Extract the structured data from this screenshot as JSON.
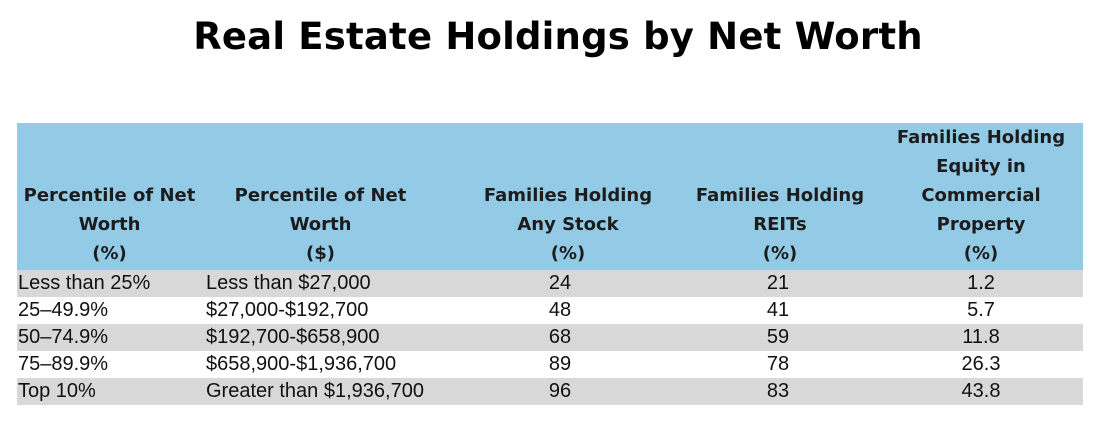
{
  "title": "Real Estate Holdings by Net Worth",
  "colors": {
    "header_background": "#93cbe7",
    "shaded_row": "#d8d8d8"
  },
  "table": {
    "columns": [
      {
        "lines": [
          "Percentile of Net",
          "Worth",
          "(%)"
        ]
      },
      {
        "lines": [
          "Percentile of Net Worth",
          "($)"
        ]
      },
      {
        "lines": [
          "Families Holding",
          "Any Stock",
          "(%)"
        ]
      },
      {
        "lines": [
          "Families Holding",
          "REITs",
          "(%)"
        ]
      },
      {
        "lines": [
          "Families Holding",
          "Equity in",
          "Commercial",
          "Property",
          "(%)"
        ]
      }
    ],
    "rows": [
      {
        "percentile": "Less than 25%",
        "net_worth": "Less than $27,000",
        "any_stock": "24",
        "reits": "21",
        "commercial": "1.2"
      },
      {
        "percentile": "25–49.9%",
        "net_worth": "$27,000-$192,700",
        "any_stock": "48",
        "reits": "41",
        "commercial": "5.7"
      },
      {
        "percentile": "50–74.9%",
        "net_worth": "$192,700-$658,900",
        "any_stock": "68",
        "reits": "59",
        "commercial": "11.8"
      },
      {
        "percentile": "75–89.9%",
        "net_worth": "$658,900-$1,936,700",
        "any_stock": "89",
        "reits": "78",
        "commercial": "26.3"
      },
      {
        "percentile": "Top 10%",
        "net_worth": "Greater than $1,936,700",
        "any_stock": "96",
        "reits": "83",
        "commercial": "43.8"
      }
    ]
  }
}
